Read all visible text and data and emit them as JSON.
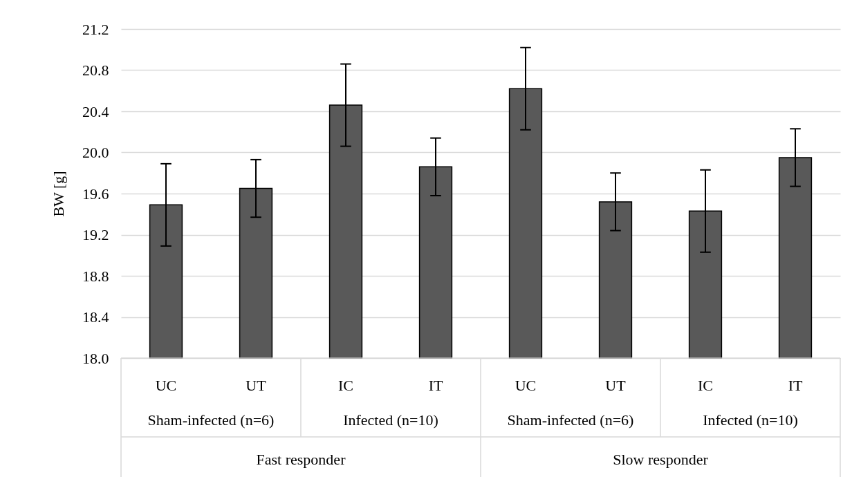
{
  "chart_data": {
    "type": "bar",
    "ylabel": "BW [g]",
    "categories": [
      "UC",
      "UT",
      "IC",
      "IT",
      "UC",
      "UT",
      "IC",
      "IT"
    ],
    "values": [
      19.49,
      19.65,
      20.46,
      19.86,
      20.62,
      19.52,
      19.43,
      19.95
    ],
    "errors": [
      0.4,
      0.28,
      0.4,
      0.28,
      0.4,
      0.28,
      0.4,
      0.28
    ],
    "color": "#595959",
    "ylim": [
      18.0,
      21.2
    ],
    "yticks": [
      {
        "value": 18.0,
        "label": "18.0"
      },
      18.4,
      18.8,
      19.2,
      19.6,
      {
        "value": 20.0,
        "label": "20.0"
      },
      20.4,
      20.8,
      21.2
    ],
    "grid": "y",
    "annotations": [
      "Sham-infected (n=6)",
      "Infected (n=10)",
      "Sham-infected (n=6)",
      "Infected (n=10)",
      "Fast responder",
      "Slow responder"
    ]
  }
}
